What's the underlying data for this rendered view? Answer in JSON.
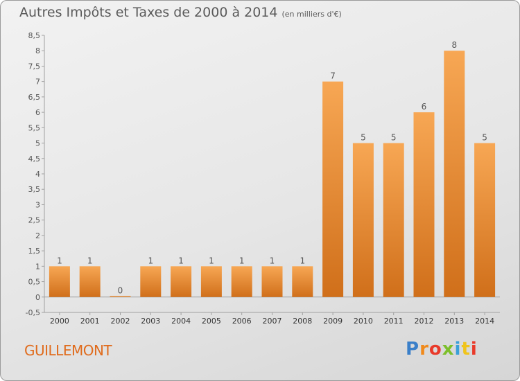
{
  "title": "Autres Impôts et Taxes de 2000 à 2014",
  "unit": "(en milliers d'€)",
  "commune": "GUILLEMONT",
  "logo": "Proxiti",
  "colors": {
    "bar_top": "#f7a754",
    "bar_bottom": "#d06f1a",
    "commune_text": "#e06b1c",
    "logo_letters": [
      "#3a7fc9",
      "#f08a1c",
      "#e93a2a",
      "#7cbf2a",
      "#3aa0d8",
      "#f0c41c",
      "#e93a2a"
    ]
  },
  "chart_data": {
    "type": "bar",
    "categories": [
      "2000",
      "2001",
      "2002",
      "2003",
      "2004",
      "2005",
      "2006",
      "2007",
      "2008",
      "2009",
      "2010",
      "2011",
      "2012",
      "2013",
      "2014"
    ],
    "values": [
      1,
      1,
      0,
      1,
      1,
      1,
      1,
      1,
      1,
      7,
      5,
      5,
      6,
      8,
      5
    ],
    "data_labels": [
      "1",
      "1",
      "0",
      "1",
      "1",
      "1",
      "1",
      "1",
      "1",
      "7",
      "5",
      "5",
      "6",
      "8",
      "5"
    ],
    "ylim": [
      -0.5,
      8.5
    ],
    "yticks": [
      "-0,5",
      "0",
      "0,5",
      "1",
      "1,5",
      "2",
      "2,5",
      "3",
      "3,5",
      "4",
      "4,5",
      "5",
      "5,5",
      "6",
      "6,5",
      "7",
      "7,5",
      "8",
      "8,5"
    ],
    "ytick_values": [
      -0.5,
      0,
      0.5,
      1,
      1.5,
      2,
      2.5,
      3,
      3.5,
      4,
      4.5,
      5,
      5.5,
      6,
      6.5,
      7,
      7.5,
      8,
      8.5
    ],
    "grid": false,
    "legend": "none"
  }
}
